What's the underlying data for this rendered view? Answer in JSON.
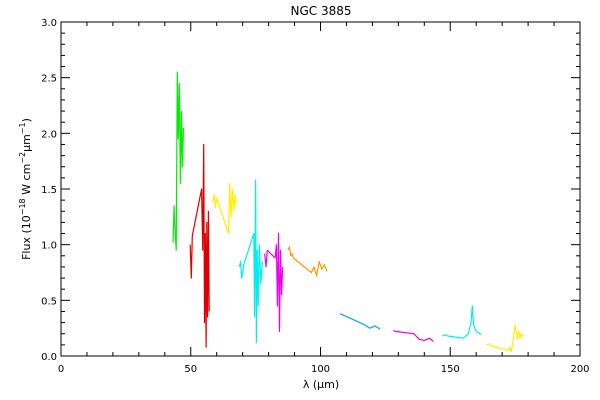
{
  "chart_data": {
    "type": "line",
    "title": "NGC 3885",
    "xlabel": "λ (μm)",
    "ylabel": {
      "prefix": "Flux (10",
      "exp1": "−18",
      "mid": " W cm",
      "exp2": "−2",
      "unit": "μm",
      "exp3": "−1",
      "suffix": ")"
    },
    "xlim": [
      0,
      200
    ],
    "ylim": [
      0.0,
      3.0
    ],
    "x_ticks": [
      0,
      50,
      100,
      150,
      200
    ],
    "y_ticks": [
      0.0,
      0.5,
      1.0,
      1.5,
      2.0,
      2.5,
      3.0
    ],
    "x_tick_labels": [
      "0",
      "50",
      "100",
      "150",
      "200"
    ],
    "y_tick_labels": [
      "0.0",
      "0.5",
      "1.0",
      "1.5",
      "2.0",
      "2.5",
      "3.0"
    ],
    "x_minor_step": 10,
    "y_minor_step": 0.1,
    "grid": false,
    "series": [
      {
        "color": "#00ee00",
        "x": [
          43.2,
          43.6,
          44.0,
          44.4,
          44.8,
          45.2,
          45.6,
          46.0,
          46.4,
          46.8,
          47.2
        ],
        "y": [
          1.02,
          1.35,
          1.1,
          0.95,
          2.55,
          1.95,
          2.45,
          1.55,
          2.2,
          1.7,
          2.05
        ]
      },
      {
        "color": "#dd0000",
        "x": [
          49.8,
          50.2,
          50.6,
          54.2,
          54.6,
          55.0,
          55.3,
          55.6,
          55.9,
          56.2,
          56.5,
          56.8,
          57.1
        ],
        "y": [
          1.0,
          0.7,
          1.08,
          1.5,
          0.95,
          1.9,
          0.3,
          1.1,
          0.08,
          1.2,
          0.35,
          1.3,
          0.4
        ]
      },
      {
        "color": "#ffee00",
        "x": [
          58.5,
          59.0,
          59.5,
          60.0,
          64.5,
          65.0,
          65.5,
          66.0,
          66.5,
          67.0,
          67.5
        ],
        "y": [
          1.38,
          1.45,
          1.33,
          1.42,
          1.1,
          1.55,
          1.25,
          1.5,
          1.3,
          1.45,
          1.35
        ]
      },
      {
        "color": "#00eeee",
        "x": [
          68.8,
          69.2,
          69.6,
          70.0,
          70.4,
          74.3,
          74.6,
          75.0,
          75.3,
          75.6,
          76.0,
          76.4,
          77.0,
          77.6
        ],
        "y": [
          0.8,
          0.85,
          0.7,
          0.75,
          0.82,
          1.1,
          0.35,
          1.58,
          0.12,
          0.95,
          0.45,
          1.0,
          0.65,
          0.85
        ]
      },
      {
        "color": "#ee00ee",
        "x": [
          78.5,
          79.0,
          79.5,
          82.5,
          83.0,
          83.4,
          83.8,
          84.2,
          84.6,
          85.0,
          85.4
        ],
        "y": [
          0.92,
          0.8,
          0.95,
          0.88,
          1.0,
          0.45,
          1.1,
          0.22,
          0.95,
          0.55,
          0.8
        ]
      },
      {
        "color": "#ff9900",
        "x": [
          87.5,
          88.0,
          88.5,
          89.0,
          89.5,
          96.5,
          97.5,
          98.5,
          99.5,
          100.5,
          101.5,
          102.5
        ],
        "y": [
          0.95,
          0.98,
          0.9,
          0.92,
          0.88,
          0.75,
          0.8,
          0.72,
          0.85,
          0.78,
          0.82,
          0.76
        ]
      },
      {
        "color": "#00aaff",
        "x": [
          107.5,
          108.5,
          109.5,
          117.0,
          119.0,
          121.0,
          123.0
        ],
        "y": [
          0.38,
          0.37,
          0.36,
          0.28,
          0.25,
          0.27,
          0.24
        ]
      },
      {
        "color": "#ee00ee",
        "x": [
          128.0,
          129.0,
          136.0,
          138.0,
          140.0,
          142.0,
          143.5
        ],
        "y": [
          0.23,
          0.22,
          0.2,
          0.15,
          0.14,
          0.16,
          0.13
        ]
      },
      {
        "color": "#00eeee",
        "x": [
          147.0,
          148.0,
          149.0,
          155.0,
          157.0,
          158.0,
          158.5,
          159.0,
          160.0,
          162.0
        ],
        "y": [
          0.18,
          0.19,
          0.18,
          0.16,
          0.2,
          0.3,
          0.45,
          0.28,
          0.22,
          0.19
        ]
      },
      {
        "color": "#ffee00",
        "x": [
          164.0,
          165.0,
          166.0,
          172.5,
          173.0,
          173.5,
          174.0,
          175.0,
          176.0,
          177.5
        ],
        "y": [
          0.1,
          0.11,
          0.09,
          0.05,
          0.08,
          0.04,
          0.1,
          0.28,
          0.15,
          0.2
        ]
      },
      {
        "color": "#ffee00",
        "x": [
          176.0,
          176.5,
          177.0,
          177.5,
          178.0
        ],
        "y": [
          0.18,
          0.22,
          0.16,
          0.2,
          0.18
        ]
      }
    ]
  }
}
